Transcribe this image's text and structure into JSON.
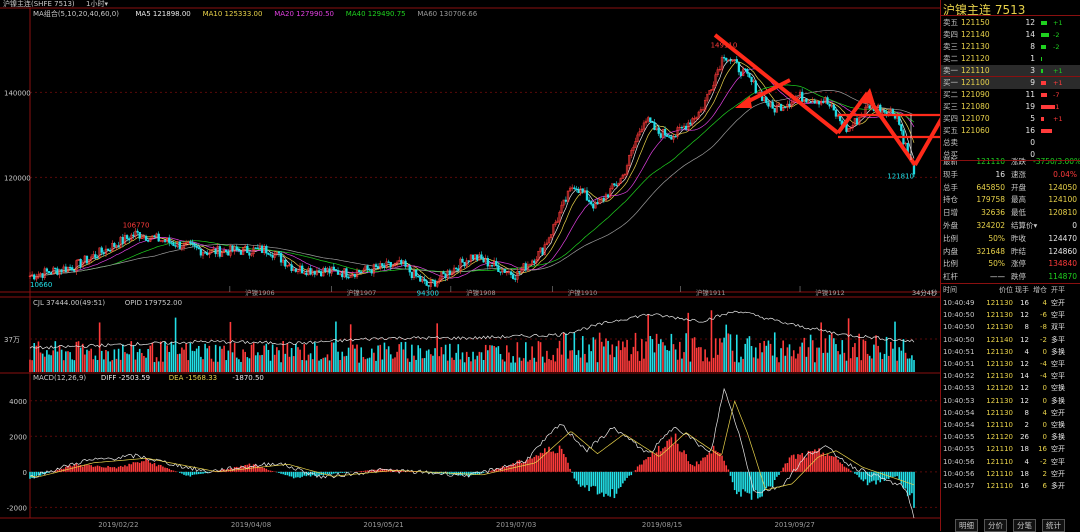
{
  "app": {
    "title_bar": "沪镍主连(SHFE 7513)",
    "period": "1小时▾"
  },
  "colors": {
    "up": "#ff3b3b",
    "down": "#22e0e8",
    "ma5": "#e8e8e8",
    "ma10": "#e8d24a",
    "ma20": "#e040e0",
    "ma40": "#1fd11f",
    "ma60": "#9a9a9a",
    "frame": "#8a1010"
  },
  "chart_data": [
    {
      "type": "candlestick",
      "symbol": "沪镍主连(SHFE 7513)",
      "legend": [
        {
          "label": "MA组合(5,10,20,40,60,0)",
          "color": "#c8c8c8"
        },
        {
          "label": "MA5 121898.00",
          "color": "#e8e8e8"
        },
        {
          "label": "MA10 125333.00",
          "color": "#e8d24a"
        },
        {
          "label": "MA20 127990.50",
          "color": "#e040e0"
        },
        {
          "label": "MA40 129490.75",
          "color": "#1fd11f"
        },
        {
          "label": "MA60 130706.66",
          "color": "#9a9a9a"
        }
      ],
      "y_ticks": [
        "140000",
        "120000"
      ],
      "ylim": [
        93000,
        158000
      ],
      "close_path": [
        [
          0,
          96800
        ],
        [
          0.05,
          99000
        ],
        [
          0.12,
          106770
        ],
        [
          0.2,
          102500
        ],
        [
          0.27,
          103000
        ],
        [
          0.3,
          98500
        ],
        [
          0.36,
          97500
        ],
        [
          0.42,
          99500
        ],
        [
          0.45,
          94300
        ],
        [
          0.5,
          101500
        ],
        [
          0.55,
          97000
        ],
        [
          0.58,
          103000
        ],
        [
          0.615,
          118500
        ],
        [
          0.64,
          113000
        ],
        [
          0.67,
          120000
        ],
        [
          0.695,
          134000
        ],
        [
          0.71,
          130500
        ],
        [
          0.73,
          130000
        ],
        [
          0.76,
          136000
        ],
        [
          0.785,
          149110
        ],
        [
          0.81,
          144000
        ],
        [
          0.84,
          136000
        ],
        [
          0.87,
          139000
        ],
        [
          0.9,
          138000
        ],
        [
          0.925,
          131000
        ],
        [
          0.95,
          137000
        ],
        [
          0.98,
          135000
        ],
        [
          0.995,
          124000
        ],
        [
          1.0,
          121810
        ]
      ],
      "annotations": [
        {
          "text": "106770",
          "color": "#ff3b3b"
        },
        {
          "text": "94300",
          "color": "#22e0e8"
        },
        {
          "text": "149110",
          "color": "#ff3b3b"
        },
        {
          "text": "121810",
          "color": "#22e0e8"
        },
        {
          "text": "10660",
          "color": "#22e0e8"
        }
      ],
      "period_labels": [
        "沪镍1906",
        "沪镍1907",
        "沪镍1908",
        "沪镍1910",
        "沪镍1911",
        "沪镍1912"
      ],
      "period_label_fracs": [
        0.26,
        0.375,
        0.51,
        0.625,
        0.77,
        0.905
      ],
      "right_note": "34分4秒"
    },
    {
      "type": "bar",
      "title": "CJL",
      "legend": [
        {
          "label": "CJL 37444.00(49:51)",
          "color": "#c8c8c8"
        },
        {
          "label": "OPID 179752.00",
          "color": "#c8c8c8"
        }
      ],
      "y_ticks": [
        "37万"
      ],
      "open_interest_path": [
        [
          0,
          0.35
        ],
        [
          0.1,
          0.4
        ],
        [
          0.2,
          0.45
        ],
        [
          0.3,
          0.42
        ],
        [
          0.4,
          0.5
        ],
        [
          0.5,
          0.5
        ],
        [
          0.6,
          0.55
        ],
        [
          0.66,
          0.75
        ],
        [
          0.7,
          0.85
        ],
        [
          0.76,
          0.75
        ],
        [
          0.8,
          0.9
        ],
        [
          0.86,
          0.7
        ],
        [
          0.92,
          0.55
        ],
        [
          1.0,
          0.45
        ]
      ]
    },
    {
      "type": "bar",
      "title": "MACD",
      "legend": [
        {
          "label": "MACD(12,26,9)",
          "color": "#c8c8c8"
        },
        {
          "label": "DIFF -2503.59",
          "color": "#e8e8e8"
        },
        {
          "label": "DEA -1568.33",
          "color": "#e8d24a"
        },
        {
          "label": "-1870.50",
          "color": "#e8e8e8"
        }
      ],
      "y_ticks": [
        "4000",
        "2000",
        "0",
        "-2000"
      ],
      "ylim": [
        -2600,
        5000
      ],
      "hist_path": [
        [
          0,
          -500
        ],
        [
          0.05,
          500
        ],
        [
          0.1,
          300
        ],
        [
          0.13,
          800
        ],
        [
          0.18,
          -300
        ],
        [
          0.25,
          500
        ],
        [
          0.3,
          -400
        ],
        [
          0.4,
          200
        ],
        [
          0.5,
          -300
        ],
        [
          0.55,
          600
        ],
        [
          0.6,
          1800
        ],
        [
          0.62,
          -1000
        ],
        [
          0.66,
          -1600
        ],
        [
          0.7,
          1200
        ],
        [
          0.73,
          2200
        ],
        [
          0.75,
          400
        ],
        [
          0.78,
          1800
        ],
        [
          0.8,
          -1500
        ],
        [
          0.83,
          -1800
        ],
        [
          0.86,
          1000
        ],
        [
          0.9,
          1400
        ],
        [
          0.95,
          -900
        ],
        [
          0.98,
          -300
        ],
        [
          1.0,
          -2200
        ]
      ],
      "diff_path": [
        [
          0,
          -300
        ],
        [
          0.06,
          600
        ],
        [
          0.12,
          900
        ],
        [
          0.2,
          0
        ],
        [
          0.28,
          500
        ],
        [
          0.33,
          -300
        ],
        [
          0.4,
          100
        ],
        [
          0.5,
          -200
        ],
        [
          0.56,
          600
        ],
        [
          0.6,
          2700
        ],
        [
          0.63,
          1200
        ],
        [
          0.66,
          2500
        ],
        [
          0.7,
          1000
        ],
        [
          0.73,
          2600
        ],
        [
          0.77,
          1000
        ],
        [
          0.785,
          4700
        ],
        [
          0.8,
          2500
        ],
        [
          0.82,
          -1200
        ],
        [
          0.85,
          -800
        ],
        [
          0.88,
          1000
        ],
        [
          0.9,
          1400
        ],
        [
          0.93,
          300
        ],
        [
          0.96,
          -300
        ],
        [
          0.99,
          -900
        ],
        [
          1.0,
          -2500
        ]
      ]
    }
  ],
  "x_axis_dates": [
    "2019/02/22",
    "2019/04/08",
    "2019/05/21",
    "2019/07/03",
    "2019/08/15",
    "2019/09/27"
  ],
  "x_axis_date_fracs": [
    0.1,
    0.25,
    0.4,
    0.55,
    0.715,
    0.865
  ],
  "sidebar": {
    "title": "沪镍主连  7513",
    "order_book": [
      {
        "label": "卖五",
        "price": "121150",
        "qty": "12",
        "delta": "+1",
        "delta_color": "#1fd11f",
        "bar": 0.4,
        "bar_color": "#1fd11f"
      },
      {
        "label": "卖四",
        "price": "121140",
        "qty": "14",
        "delta": "-2",
        "delta_color": "#1fd11f",
        "bar": 0.5,
        "bar_color": "#1fd11f"
      },
      {
        "label": "卖三",
        "price": "121130",
        "qty": "8",
        "delta": "-2",
        "delta_color": "#1fd11f",
        "bar": 0.3,
        "bar_color": "#1fd11f"
      },
      {
        "label": "卖二",
        "price": "121120",
        "qty": "1",
        "delta": "",
        "delta_color": "#1fd11f",
        "bar": 0.05,
        "bar_color": "#1fd11f"
      },
      {
        "label": "卖一",
        "price": "121110",
        "qty": "3",
        "delta": "+1",
        "delta_color": "#1fd11f",
        "bar": 0.1,
        "bar_color": "#1fd11f",
        "highlight": true
      },
      {
        "label": "买一",
        "price": "121100",
        "qty": "9",
        "delta": "+1",
        "delta_color": "#ff3b3b",
        "bar": 0.3,
        "bar_color": "#ff3b3b",
        "highlight": true
      },
      {
        "label": "买二",
        "price": "121090",
        "qty": "11",
        "delta": "-7",
        "delta_color": "#ff3b3b",
        "bar": 0.4,
        "bar_color": "#ff3b3b"
      },
      {
        "label": "买三",
        "price": "121080",
        "qty": "19",
        "delta": "-1",
        "delta_color": "#ff3b3b",
        "bar": 0.9,
        "bar_color": "#ff3b3b"
      },
      {
        "label": "买四",
        "price": "121070",
        "qty": "5",
        "delta": "+1",
        "delta_color": "#ff3b3b",
        "bar": 0.2,
        "bar_color": "#ff3b3b"
      },
      {
        "label": "买五",
        "price": "121060",
        "qty": "16",
        "delta": "",
        "delta_color": "#ff3b3b",
        "bar": 0.7,
        "bar_color": "#ff3b3b"
      }
    ],
    "totals": [
      {
        "label": "总卖",
        "value": "0"
      },
      {
        "label": "总买",
        "value": "0"
      }
    ],
    "stats": [
      {
        "l1": "最新",
        "v1": "121110",
        "c1": "#1fd11f",
        "l2": "涨跌",
        "v2": "-3750/3.00%",
        "c2": "#1fd11f"
      },
      {
        "l1": "现手",
        "v1": "16",
        "c1": "#e8e8e8",
        "l2": "速涨",
        "v2": "0.04%",
        "c2": "#ff3b3b"
      },
      {
        "l1": "总手",
        "v1": "645850",
        "c1": "#e8d24a",
        "l2": "开盘",
        "v2": "124050",
        "c2": "#e8d24a"
      },
      {
        "l1": "持仓",
        "v1": "179758",
        "c1": "#e8d24a",
        "l2": "最高",
        "v2": "124100",
        "c2": "#e8d24a"
      },
      {
        "l1": "日增",
        "v1": "32636",
        "c1": "#e8d24a",
        "l2": "最低",
        "v2": "120810",
        "c2": "#e8d24a"
      },
      {
        "l1": "外盘",
        "v1": "324202",
        "c1": "#e8d24a",
        "l2": "结算价▾",
        "v2": "0",
        "c2": "#e8e8e8"
      },
      {
        "l1": "比例",
        "v1": "50%",
        "c1": "#e8d24a",
        "l2": "昨收",
        "v2": "124470",
        "c2": "#e8e8e8"
      },
      {
        "l1": "内盘",
        "v1": "321648",
        "c1": "#e8d24a",
        "l2": "昨结",
        "v2": "124860",
        "c2": "#e8e8e8"
      },
      {
        "l1": "比例",
        "v1": "50%",
        "c1": "#e8d24a",
        "l2": "涨停",
        "v2": "134840",
        "c2": "#ff3b3b"
      },
      {
        "l1": "杠杆",
        "v1": "——",
        "c1": "#e8e8e8",
        "l2": "跌停",
        "v2": "114870",
        "c2": "#1fd11f"
      }
    ],
    "trades_header": [
      "时间",
      "价位",
      "现手",
      "增仓",
      "开平"
    ],
    "trades": [
      {
        "time": "10:40:49",
        "price": "121130",
        "vol": "16",
        "chg": "4",
        "chg_color": "#e8d24a",
        "kind": "空开",
        "kind_color": "#e8e8e8"
      },
      {
        "time": "10:40:50",
        "price": "121130",
        "vol": "12",
        "chg": "-6",
        "chg_color": "#e8d24a",
        "kind": "空平",
        "kind_color": "#e8e8e8"
      },
      {
        "time": "10:40:50",
        "price": "121130",
        "vol": "8",
        "chg": "-8",
        "chg_color": "#e8d24a",
        "kind": "双平",
        "kind_color": "#e8e8e8"
      },
      {
        "time": "10:40:50",
        "price": "121140",
        "vol": "12",
        "chg": "-2",
        "chg_color": "#e8d24a",
        "kind": "多平",
        "kind_color": "#e8e8e8"
      },
      {
        "time": "10:40:51",
        "price": "121130",
        "vol": "4",
        "chg": "0",
        "chg_color": "#e8d24a",
        "kind": "多换",
        "kind_color": "#e8e8e8"
      },
      {
        "time": "10:40:51",
        "price": "121130",
        "vol": "12",
        "chg": "-4",
        "chg_color": "#e8d24a",
        "kind": "空平",
        "kind_color": "#e8e8e8"
      },
      {
        "time": "10:40:52",
        "price": "121130",
        "vol": "14",
        "chg": "-4",
        "chg_color": "#e8d24a",
        "kind": "空平",
        "kind_color": "#e8e8e8"
      },
      {
        "time": "10:40:53",
        "price": "121120",
        "vol": "12",
        "chg": "0",
        "chg_color": "#e8d24a",
        "kind": "空换",
        "kind_color": "#e8e8e8"
      },
      {
        "time": "10:40:53",
        "price": "121130",
        "vol": "12",
        "chg": "0",
        "chg_color": "#e8d24a",
        "kind": "多换",
        "kind_color": "#e8e8e8"
      },
      {
        "time": "10:40:54",
        "price": "121130",
        "vol": "8",
        "chg": "4",
        "chg_color": "#e8d24a",
        "kind": "空开",
        "kind_color": "#e8e8e8"
      },
      {
        "time": "10:40:54",
        "price": "121110",
        "vol": "2",
        "chg": "0",
        "chg_color": "#e8d24a",
        "kind": "空换",
        "kind_color": "#e8e8e8"
      },
      {
        "time": "10:40:55",
        "price": "121120",
        "vol": "26",
        "chg": "0",
        "chg_color": "#e8d24a",
        "kind": "多换",
        "kind_color": "#e8e8e8"
      },
      {
        "time": "10:40:55",
        "price": "121110",
        "vol": "18",
        "chg": "16",
        "chg_color": "#e8d24a",
        "kind": "空开",
        "kind_color": "#e8e8e8"
      },
      {
        "time": "10:40:56",
        "price": "121110",
        "vol": "4",
        "chg": "-2",
        "chg_color": "#e8d24a",
        "kind": "空平",
        "kind_color": "#e8e8e8"
      },
      {
        "time": "10:40:56",
        "price": "121110",
        "vol": "18",
        "chg": "2",
        "chg_color": "#e8d24a",
        "kind": "空开",
        "kind_color": "#e8e8e8"
      },
      {
        "time": "10:40:57",
        "price": "121110",
        "vol": "16",
        "chg": "6",
        "chg_color": "#e8d24a",
        "kind": "多开",
        "kind_color": "#e8e8e8"
      }
    ],
    "tabs": [
      "明细",
      "分价",
      "分笔",
      "统计"
    ]
  }
}
